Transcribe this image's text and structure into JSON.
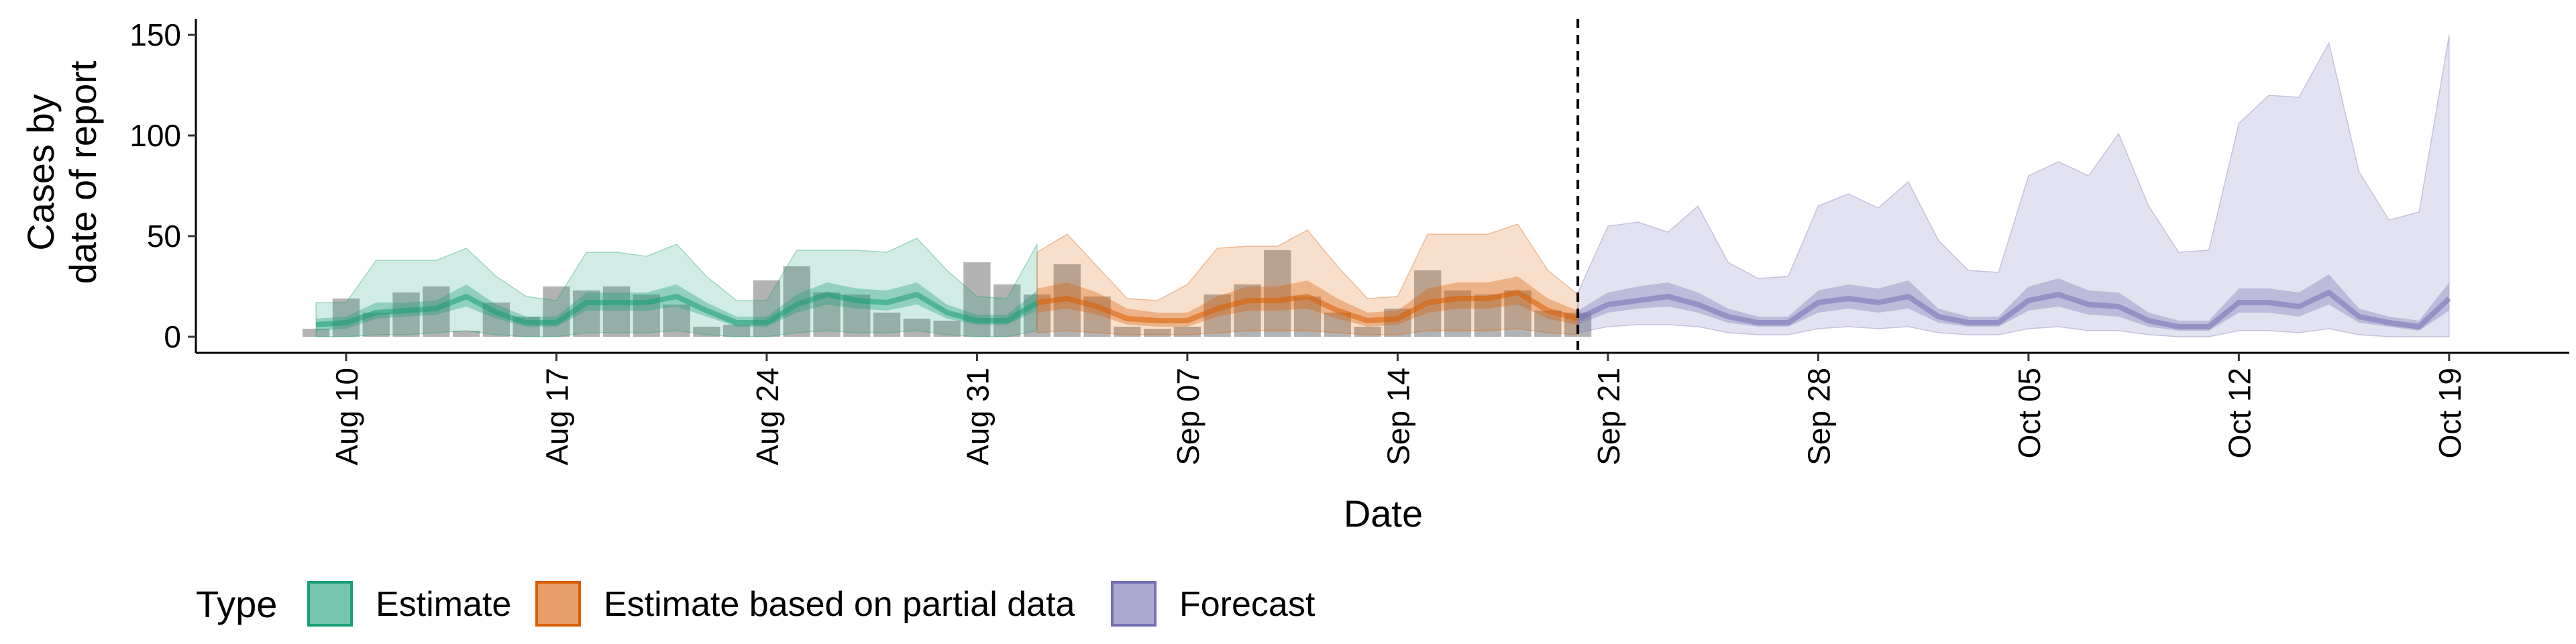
{
  "chart_data": {
    "type": "area",
    "xlabel": "Date",
    "ylabel_lines": [
      "Cases by",
      "date of report"
    ],
    "yticks": [
      0,
      50,
      100,
      150
    ],
    "ylim": [
      -8,
      158
    ],
    "x_tick_labels": [
      "Aug 10",
      "Aug 17",
      "Aug 24",
      "Aug 31",
      "Sep 07",
      "Sep 14",
      "Sep 21",
      "Sep 28",
      "Oct 05",
      "Oct 12",
      "Oct 19"
    ],
    "x_tick_dates": [
      "2020-08-10",
      "2020-08-17",
      "2020-08-24",
      "2020-08-31",
      "2020-09-07",
      "2020-09-14",
      "2020-09-21",
      "2020-09-28",
      "2020-10-05",
      "2020-10-12",
      "2020-10-19"
    ],
    "xlim": [
      "2020-08-05",
      "2020-10-23"
    ],
    "forecast_date": "2020-09-20",
    "colors": {
      "estimate": "#1b9e77",
      "partial": "#d95f02",
      "forecast": "#7570b3",
      "bars": "#a6a6a6",
      "vline": "#000000"
    },
    "observed": {
      "dates": [
        "2020-08-09",
        "2020-08-10",
        "2020-08-11",
        "2020-08-12",
        "2020-08-13",
        "2020-08-14",
        "2020-08-15",
        "2020-08-16",
        "2020-08-17",
        "2020-08-18",
        "2020-08-19",
        "2020-08-20",
        "2020-08-21",
        "2020-08-22",
        "2020-08-23",
        "2020-08-24",
        "2020-08-25",
        "2020-08-26",
        "2020-08-27",
        "2020-08-28",
        "2020-08-29",
        "2020-08-30",
        "2020-08-31",
        "2020-09-01",
        "2020-09-02",
        "2020-09-03",
        "2020-09-04",
        "2020-09-05",
        "2020-09-06",
        "2020-09-07",
        "2020-09-08",
        "2020-09-09",
        "2020-09-10",
        "2020-09-11",
        "2020-09-12",
        "2020-09-13",
        "2020-09-14",
        "2020-09-15",
        "2020-09-16",
        "2020-09-17",
        "2020-09-18",
        "2020-09-19",
        "2020-09-20"
      ],
      "values": [
        4,
        19,
        12,
        22,
        25,
        3,
        17,
        10,
        25,
        23,
        25,
        21,
        16,
        5,
        6,
        28,
        35,
        22,
        21,
        12,
        9,
        8,
        37,
        26,
        21,
        36,
        20,
        5,
        4,
        5,
        21,
        26,
        43,
        20,
        12,
        5,
        14,
        33,
        23,
        21,
        23,
        13,
        12
      ]
    },
    "series": [
      {
        "name": "Estimate",
        "dates": [
          "2020-08-09",
          "2020-08-10",
          "2020-08-11",
          "2020-08-12",
          "2020-08-13",
          "2020-08-14",
          "2020-08-15",
          "2020-08-16",
          "2020-08-17",
          "2020-08-18",
          "2020-08-19",
          "2020-08-20",
          "2020-08-21",
          "2020-08-22",
          "2020-08-23",
          "2020-08-24",
          "2020-08-25",
          "2020-08-26",
          "2020-08-27",
          "2020-08-28",
          "2020-08-29",
          "2020-08-30",
          "2020-08-31",
          "2020-09-01",
          "2020-09-02"
        ],
        "median": [
          6,
          7,
          12,
          13,
          14,
          20,
          12,
          7,
          7,
          17,
          17,
          17,
          20,
          13,
          7,
          7,
          16,
          21,
          18,
          17,
          21,
          12,
          8,
          8,
          17
        ],
        "lower50": [
          3,
          4,
          9,
          10,
          11,
          15,
          9,
          5,
          5,
          13,
          13,
          13,
          15,
          10,
          5,
          5,
          12,
          16,
          14,
          13,
          16,
          9,
          6,
          6,
          13
        ],
        "upper50": [
          9,
          10,
          17,
          17,
          18,
          26,
          16,
          10,
          10,
          22,
          22,
          22,
          26,
          17,
          10,
          10,
          21,
          27,
          24,
          23,
          27,
          16,
          11,
          11,
          23
        ],
        "lower90": [
          0,
          0,
          1,
          1,
          2,
          3,
          1,
          0,
          0,
          2,
          2,
          2,
          3,
          1,
          0,
          0,
          2,
          3,
          2,
          2,
          3,
          1,
          0,
          0,
          3
        ],
        "upper90": [
          17,
          17,
          38,
          38,
          38,
          44,
          30,
          20,
          18,
          42,
          42,
          40,
          46,
          30,
          18,
          18,
          43,
          43,
          43,
          42,
          49,
          33,
          20,
          19,
          46
        ]
      },
      {
        "name": "Estimate based on partial data",
        "dates": [
          "2020-09-02",
          "2020-09-03",
          "2020-09-04",
          "2020-09-05",
          "2020-09-06",
          "2020-09-07",
          "2020-09-08",
          "2020-09-09",
          "2020-09-10",
          "2020-09-11",
          "2020-09-12",
          "2020-09-13",
          "2020-09-14",
          "2020-09-15",
          "2020-09-16",
          "2020-09-17",
          "2020-09-18",
          "2020-09-19",
          "2020-09-20"
        ],
        "median": [
          17,
          19,
          15,
          9,
          8,
          8,
          14,
          18,
          18,
          20,
          13,
          8,
          9,
          17,
          19,
          19,
          22,
          13,
          9
        ],
        "lower50": [
          12,
          14,
          11,
          6,
          5,
          5,
          10,
          13,
          13,
          14,
          9,
          5,
          6,
          12,
          14,
          14,
          16,
          9,
          6
        ],
        "upper50": [
          24,
          27,
          22,
          14,
          12,
          12,
          20,
          25,
          25,
          28,
          19,
          12,
          13,
          24,
          27,
          27,
          30,
          19,
          13
        ],
        "lower90": [
          2,
          3,
          2,
          1,
          1,
          1,
          2,
          3,
          3,
          3,
          2,
          1,
          1,
          3,
          3,
          3,
          4,
          2,
          1
        ],
        "upper90": [
          42,
          51,
          35,
          19,
          18,
          26,
          44,
          45,
          45,
          53,
          35,
          19,
          20,
          51,
          51,
          51,
          56,
          33,
          21
        ]
      },
      {
        "name": "Forecast",
        "dates": [
          "2020-09-20",
          "2020-09-21",
          "2020-09-22",
          "2020-09-23",
          "2020-09-24",
          "2020-09-25",
          "2020-09-26",
          "2020-09-27",
          "2020-09-28",
          "2020-09-29",
          "2020-09-30",
          "2020-10-01",
          "2020-10-02",
          "2020-10-03",
          "2020-10-04",
          "2020-10-05",
          "2020-10-06",
          "2020-10-07",
          "2020-10-08",
          "2020-10-09",
          "2020-10-10",
          "2020-10-11",
          "2020-10-12",
          "2020-10-13",
          "2020-10-14",
          "2020-10-15",
          "2020-10-16",
          "2020-10-17",
          "2020-10-18",
          "2020-10-19"
        ],
        "median": [
          9,
          16,
          18,
          20,
          16,
          10,
          7,
          7,
          17,
          19,
          17,
          20,
          10,
          7,
          7,
          18,
          21,
          16,
          15,
          8,
          5,
          5,
          17,
          17,
          15,
          22,
          10,
          7,
          5,
          19
        ],
        "lower50": [
          6,
          12,
          14,
          15,
          12,
          7,
          5,
          5,
          12,
          14,
          12,
          14,
          7,
          5,
          5,
          13,
          15,
          11,
          10,
          5,
          3,
          3,
          12,
          12,
          10,
          16,
          7,
          5,
          3,
          13
        ],
        "upper50": [
          13,
          22,
          25,
          27,
          22,
          14,
          10,
          10,
          23,
          26,
          24,
          28,
          14,
          10,
          10,
          25,
          29,
          23,
          22,
          12,
          8,
          8,
          24,
          24,
          22,
          31,
          14,
          10,
          8,
          27
        ],
        "lower90": [
          2,
          5,
          6,
          6,
          5,
          2,
          1,
          1,
          4,
          5,
          4,
          5,
          2,
          1,
          1,
          4,
          5,
          3,
          3,
          1,
          0,
          0,
          3,
          3,
          2,
          4,
          1,
          0,
          0,
          0
        ],
        "upper90": [
          22,
          55,
          57,
          52,
          65,
          37,
          29,
          30,
          65,
          71,
          64,
          77,
          48,
          33,
          32,
          80,
          87,
          80,
          101,
          65,
          42,
          43,
          106,
          120,
          119,
          146,
          82,
          58,
          62,
          150
        ]
      }
    ],
    "legend": {
      "title": "Type",
      "items": [
        {
          "label": "Estimate",
          "color": "#1b9e77"
        },
        {
          "label": "Estimate based on partial data",
          "color": "#d95f02"
        },
        {
          "label": "Forecast",
          "color": "#7570b3"
        }
      ]
    }
  }
}
